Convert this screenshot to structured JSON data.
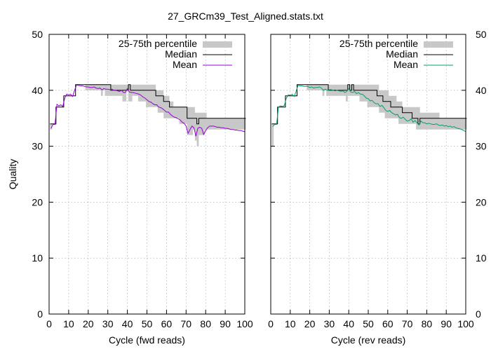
{
  "title": "27_GRCm39_Test_Aligned.stats.txt",
  "colors": {
    "percentile_band": "#c8c8c8",
    "median": "#000000",
    "mean_fwd": "#9400d3",
    "mean_rev": "#009e73",
    "grid": "#a0a0a0"
  },
  "chart_data": [
    {
      "type": "line",
      "panel": "fwd",
      "title": "",
      "xlabel": "Cycle (fwd reads)",
      "ylabel": "Quality",
      "xlim": [
        0,
        100
      ],
      "ylim": [
        0,
        50
      ],
      "xticks": [
        "0",
        "10",
        "20",
        "30",
        "40",
        "50",
        "60",
        "70",
        "80",
        "90",
        "100"
      ],
      "yticks": [
        "0",
        "10",
        "20",
        "30",
        "40",
        "50"
      ],
      "ytick_side": "left",
      "grid": true,
      "legend_position": "top-right",
      "legend": {
        "band": "25-75th percentile",
        "median": "Median",
        "mean": "Mean"
      },
      "x": [
        1,
        2,
        3,
        4,
        5,
        6,
        7,
        8,
        9,
        10,
        11,
        12,
        13,
        14,
        15,
        16,
        17,
        18,
        19,
        20,
        21,
        22,
        23,
        24,
        25,
        26,
        27,
        28,
        29,
        30,
        31,
        32,
        33,
        34,
        35,
        36,
        37,
        38,
        39,
        40,
        41,
        42,
        43,
        44,
        45,
        46,
        47,
        48,
        49,
        50,
        51,
        52,
        53,
        54,
        55,
        56,
        57,
        58,
        59,
        60,
        61,
        62,
        63,
        64,
        65,
        66,
        67,
        68,
        69,
        70,
        71,
        72,
        73,
        74,
        75,
        76,
        77,
        78,
        79,
        80,
        81,
        82,
        83,
        84,
        85,
        86,
        87,
        88,
        89,
        90,
        91,
        92,
        93,
        94,
        95,
        96,
        97,
        98,
        99,
        100
      ],
      "series": [
        {
          "name": "25-75th percentile",
          "role": "band",
          "low": [
            33,
            34,
            34,
            37,
            37,
            37,
            37,
            39,
            39,
            39,
            39,
            39,
            40,
            41,
            41,
            41,
            41,
            41,
            40,
            40,
            40,
            40,
            40,
            40,
            40,
            40,
            39,
            40,
            39,
            39,
            39,
            39,
            39,
            39,
            39,
            39,
            39,
            38,
            38,
            40,
            38,
            38,
            39,
            39,
            39,
            38,
            38,
            38,
            38,
            37,
            37,
            37,
            37,
            37,
            37,
            36,
            36,
            36,
            35,
            35,
            35,
            35,
            35,
            35,
            35,
            35,
            34,
            34,
            34,
            34,
            32,
            32,
            32,
            33,
            31,
            30,
            32,
            32,
            32,
            33,
            33,
            33,
            33,
            33,
            33,
            33,
            33,
            33,
            33,
            33,
            33,
            33,
            33,
            33,
            33,
            33,
            33,
            33,
            33,
            33
          ],
          "high": [
            34,
            34,
            34,
            37,
            37,
            37,
            37,
            39,
            39,
            39,
            39,
            39,
            40,
            41,
            41,
            41,
            41,
            41,
            41,
            41,
            41,
            41,
            41,
            41,
            41,
            41,
            41,
            41,
            41,
            41,
            41,
            41,
            41,
            41,
            41,
            41,
            41,
            41,
            41,
            41,
            41,
            41,
            41,
            41,
            41,
            41,
            41,
            41,
            41,
            41,
            41,
            41,
            41,
            41,
            40,
            40,
            40,
            40,
            39,
            39,
            39,
            38,
            38,
            37,
            37,
            37,
            37,
            37,
            37,
            37,
            37,
            37,
            37,
            37,
            36,
            36,
            36,
            36,
            36,
            36,
            35,
            35,
            35,
            35,
            35,
            35,
            35,
            35,
            35,
            35,
            35,
            35,
            35,
            35,
            35,
            35,
            35,
            35,
            35,
            35
          ]
        },
        {
          "name": "Median",
          "role": "median",
          "values": [
            34,
            34,
            34,
            37,
            37,
            37,
            37,
            39,
            39,
            39,
            39,
            39,
            39,
            41,
            41,
            41,
            41,
            41,
            41,
            41,
            41,
            41,
            41,
            41,
            41,
            41,
            41,
            41,
            41,
            41,
            41,
            40,
            40,
            40,
            40,
            40,
            40,
            40,
            40,
            40,
            41,
            40,
            40,
            40,
            40,
            40,
            40,
            40,
            40,
            40,
            40,
            40,
            40,
            40,
            39,
            39,
            39,
            39,
            38,
            38,
            38,
            37,
            37,
            37,
            37,
            37,
            37,
            37,
            37,
            37,
            35,
            35,
            35,
            35,
            35,
            34,
            35,
            35,
            35,
            35,
            35,
            35,
            35,
            35,
            35,
            35,
            35,
            35,
            35,
            35,
            35,
            35,
            35,
            35,
            35,
            35,
            35,
            35,
            35,
            35
          ]
        },
        {
          "name": "Mean",
          "role": "mean",
          "values": [
            33.2,
            33.9,
            33.9,
            37.5,
            37.2,
            37.4,
            37.1,
            38.6,
            39.3,
            39.2,
            39.3,
            38.9,
            40.0,
            40.9,
            40.9,
            40.8,
            40.8,
            40.7,
            40.6,
            40.6,
            40.5,
            40.5,
            40.6,
            40.4,
            40.3,
            40.4,
            40.1,
            40.3,
            40.2,
            40.2,
            40.1,
            40.2,
            40.0,
            40.0,
            39.9,
            39.8,
            40.0,
            39.6,
            39.6,
            40.3,
            39.7,
            39.6,
            39.6,
            39.5,
            39.4,
            39.3,
            39.1,
            38.8,
            38.6,
            38.3,
            38.0,
            37.9,
            37.6,
            37.4,
            37.4,
            37.0,
            36.9,
            36.7,
            36.4,
            36.1,
            36.1,
            35.7,
            35.4,
            35.2,
            35.1,
            34.9,
            34.7,
            34.3,
            34.1,
            33.6,
            32.3,
            33.0,
            33.6,
            33.3,
            31.8,
            33.2,
            33.4,
            33.2,
            32.1,
            32.8,
            33.3,
            33.6,
            33.6,
            33.6,
            33.5,
            33.4,
            33.4,
            33.3,
            33.3,
            33.2,
            33.2,
            33.1,
            33.0,
            33.0,
            32.9,
            32.9,
            32.8,
            32.8,
            32.7,
            32.6
          ]
        }
      ]
    },
    {
      "type": "line",
      "panel": "rev",
      "title": "",
      "xlabel": "Cycle (rev reads)",
      "ylabel": "",
      "xlim": [
        0,
        100
      ],
      "ylim": [
        0,
        50
      ],
      "xticks": [
        "0",
        "10",
        "20",
        "30",
        "40",
        "50",
        "60",
        "70",
        "80",
        "90",
        "100"
      ],
      "yticks": [
        "0",
        "10",
        "20",
        "30",
        "40",
        "50"
      ],
      "ytick_side": "right",
      "grid": true,
      "legend_position": "top-right",
      "legend": {
        "band": "25-75th percentile",
        "median": "Median",
        "mean": "Mean"
      },
      "x": [
        1,
        2,
        3,
        4,
        5,
        6,
        7,
        8,
        9,
        10,
        11,
        12,
        13,
        14,
        15,
        16,
        17,
        18,
        19,
        20,
        21,
        22,
        23,
        24,
        25,
        26,
        27,
        28,
        29,
        30,
        31,
        32,
        33,
        34,
        35,
        36,
        37,
        38,
        39,
        40,
        41,
        42,
        43,
        44,
        45,
        46,
        47,
        48,
        49,
        50,
        51,
        52,
        53,
        54,
        55,
        56,
        57,
        58,
        59,
        60,
        61,
        62,
        63,
        64,
        65,
        66,
        67,
        68,
        69,
        70,
        71,
        72,
        73,
        74,
        75,
        76,
        77,
        78,
        79,
        80,
        81,
        82,
        83,
        84,
        85,
        86,
        87,
        88,
        89,
        90,
        91,
        92,
        93,
        94,
        95,
        96,
        97,
        98,
        99,
        100
      ],
      "series": [
        {
          "name": "25-75th percentile",
          "role": "band",
          "low": [
            30,
            34,
            34,
            37,
            37,
            37,
            37,
            39,
            39,
            39,
            39,
            39,
            40,
            41,
            41,
            41,
            41,
            41,
            40,
            40,
            40,
            40,
            40,
            40,
            40,
            40,
            39,
            40,
            39,
            39,
            39,
            39,
            39,
            39,
            39,
            39,
            39,
            39,
            38,
            39,
            39,
            39,
            39,
            39,
            39,
            38,
            38,
            38,
            38,
            37,
            37,
            37,
            37,
            37,
            37,
            36,
            36,
            36,
            35,
            35,
            35,
            35,
            35,
            35,
            35,
            34,
            34,
            34,
            34,
            34,
            34,
            34,
            34,
            34,
            33,
            33,
            33,
            33,
            33,
            33,
            33,
            33,
            33,
            33,
            33,
            33,
            33,
            33,
            33,
            33,
            33,
            33,
            33,
            33,
            33,
            33,
            33,
            33,
            33,
            33
          ],
          "high": [
            34,
            34,
            34,
            37,
            37,
            37,
            37,
            39,
            39,
            39,
            39,
            39,
            40,
            41,
            41,
            41,
            41,
            41,
            41,
            41,
            41,
            41,
            41,
            41,
            41,
            41,
            41,
            41,
            41,
            41,
            41,
            41,
            41,
            41,
            41,
            41,
            41,
            41,
            41,
            41,
            41,
            41,
            41,
            41,
            41,
            41,
            41,
            41,
            41,
            41,
            41,
            41,
            41,
            41,
            41,
            40,
            40,
            40,
            40,
            40,
            39,
            39,
            39,
            39,
            38,
            38,
            38,
            37,
            37,
            37,
            37,
            37,
            37,
            37,
            37,
            37,
            36,
            36,
            36,
            36,
            36,
            36,
            36,
            36,
            36,
            36,
            35,
            35,
            35,
            35,
            35,
            35,
            35,
            35,
            35,
            35,
            35,
            35,
            35,
            35
          ]
        },
        {
          "name": "Median",
          "role": "median",
          "values": [
            34,
            34,
            34,
            37,
            37,
            37,
            37,
            39,
            39,
            39,
            39,
            39,
            39,
            41,
            41,
            41,
            41,
            41,
            41,
            41,
            41,
            41,
            41,
            41,
            41,
            41,
            41,
            41,
            41,
            40,
            40,
            40,
            40,
            40,
            40,
            40,
            40,
            40,
            40,
            41,
            40,
            41,
            40,
            40,
            40,
            40,
            40,
            40,
            40,
            40,
            40,
            40,
            40,
            40,
            39,
            39,
            39,
            38,
            38,
            38,
            38,
            37,
            37,
            37,
            37,
            37,
            37,
            36,
            36,
            36,
            36,
            36,
            35,
            35,
            35,
            34,
            35,
            35,
            35,
            35,
            35,
            35,
            35,
            35,
            35,
            35,
            35,
            35,
            35,
            35,
            35,
            35,
            35,
            35,
            35,
            35,
            35,
            35,
            35,
            35
          ]
        },
        {
          "name": "Mean",
          "role": "mean",
          "values": [
            33.5,
            33.9,
            33.9,
            37.0,
            37.2,
            37.1,
            37.3,
            38.6,
            39.2,
            39.1,
            39.3,
            38.9,
            39.8,
            40.9,
            40.8,
            40.8,
            40.7,
            40.7,
            40.7,
            40.5,
            40.6,
            40.4,
            40.5,
            40.5,
            40.6,
            40.4,
            40.0,
            40.2,
            40.0,
            40.1,
            40.1,
            40.0,
            39.9,
            40.0,
            39.9,
            39.8,
            39.9,
            39.6,
            39.8,
            40.3,
            39.7,
            39.6,
            39.8,
            39.4,
            39.6,
            39.3,
            39.3,
            39.0,
            38.6,
            38.5,
            38.1,
            38.2,
            37.8,
            37.6,
            37.6,
            37.1,
            37.3,
            36.9,
            36.4,
            36.2,
            36.4,
            36.0,
            35.8,
            35.6,
            35.7,
            35.1,
            35.0,
            35.2,
            34.8,
            34.5,
            34.6,
            34.9,
            34.3,
            34.6,
            34.2,
            33.8,
            34.5,
            34.2,
            34.2,
            34.0,
            34.1,
            34.0,
            33.9,
            33.9,
            34.0,
            33.8,
            33.7,
            33.8,
            33.6,
            33.7,
            33.5,
            33.6,
            33.4,
            33.5,
            33.3,
            33.2,
            33.1,
            33.0,
            32.8,
            32.6
          ]
        }
      ]
    }
  ]
}
